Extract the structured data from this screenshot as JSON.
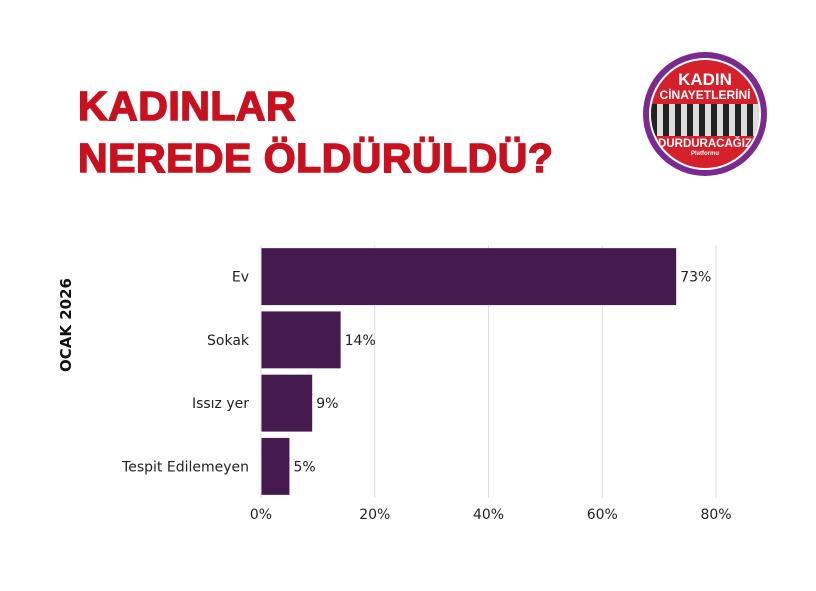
{
  "title": {
    "line1": "KADINLAR",
    "line2": "NEREDE ÖLDÜRÜLDÜ?"
  },
  "logo": {
    "line1": "KADIN",
    "line2": "CİNAYETLERİNİ",
    "line3": "DURDURACAĞIZ",
    "line4": "Platformu"
  },
  "colors": {
    "title": "#c8101e",
    "bar": "#451a4e"
  },
  "chart_data": {
    "type": "bar",
    "orientation": "horizontal",
    "ylabel": "OCAK 2026",
    "xlabel": "",
    "categories": [
      "Ev",
      "Sokak",
      "Issız yer",
      "Tespit Edilemeyen"
    ],
    "values": [
      73,
      14,
      9,
      5
    ],
    "data_labels": [
      "73%",
      "14%",
      "9%",
      "5%"
    ],
    "xlim": [
      0,
      80
    ],
    "xticks": [
      0,
      20,
      40,
      60,
      80
    ],
    "xtick_labels": [
      "0%",
      "20%",
      "40%",
      "60%",
      "80%"
    ],
    "grid": "vertical"
  }
}
